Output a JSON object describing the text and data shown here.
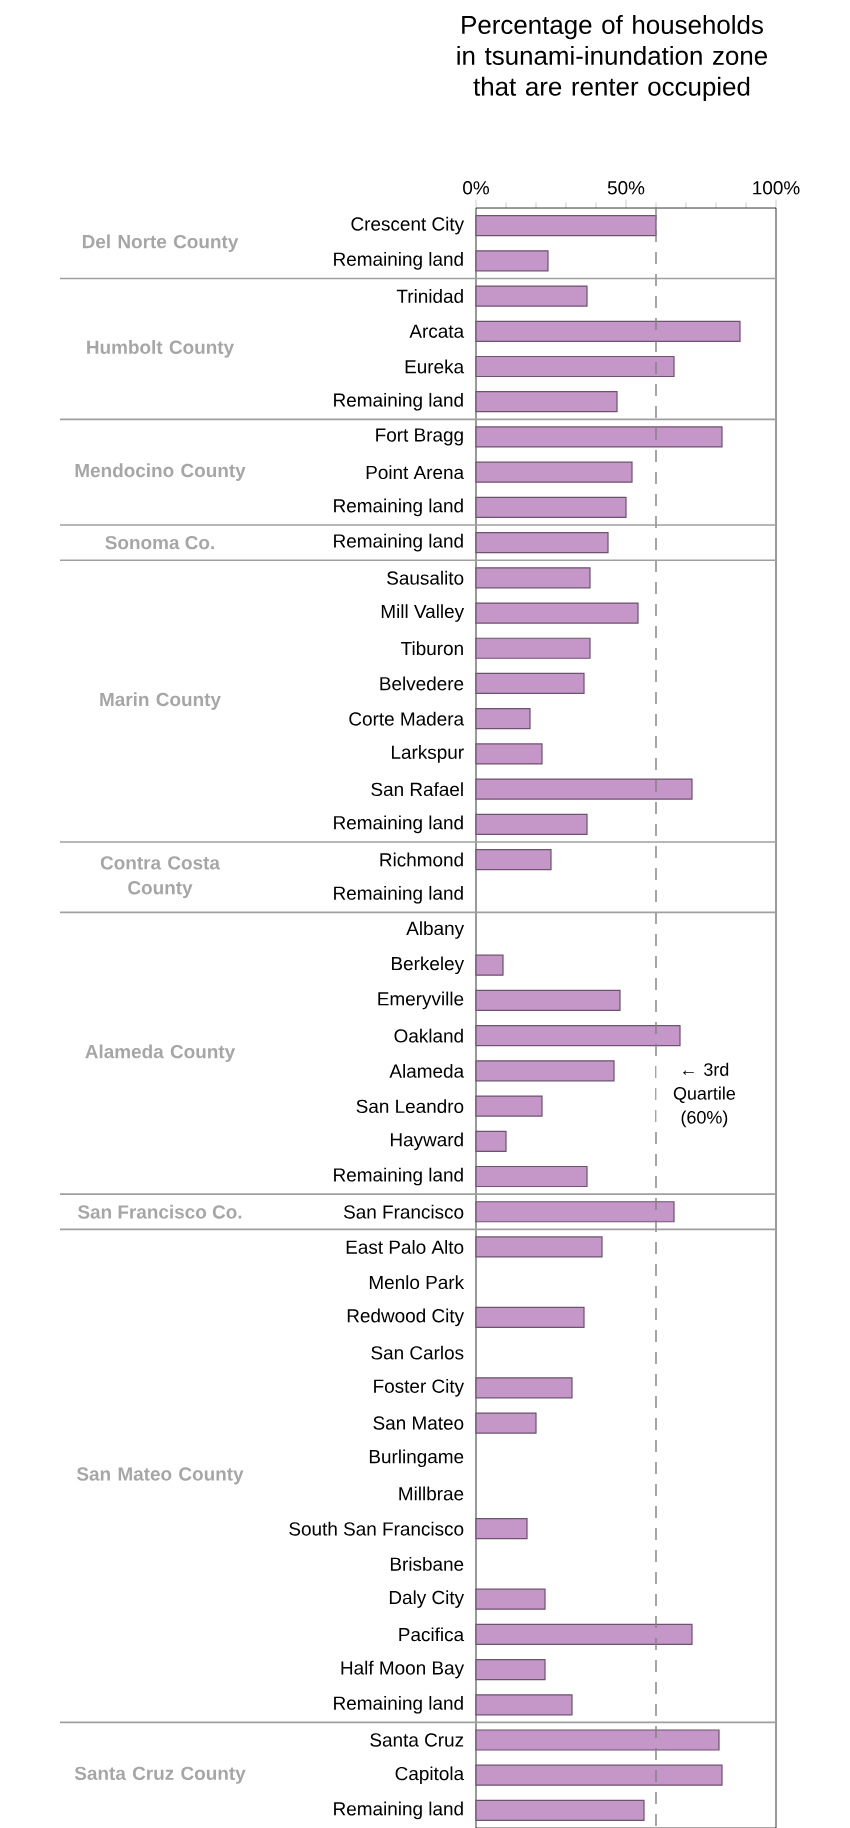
{
  "chart_data": {
    "type": "bar",
    "orientation": "horizontal",
    "title": "Percentage of households in tsunami-inundation zone that are renter occupied",
    "categories": [
      "Crescent City",
      "Remaining land",
      "Trinidad",
      "Arcata",
      "Eureka",
      "Remaining land",
      "Fort Bragg",
      "Point Arena",
      "Remaining land",
      "Remaining land",
      "Sausalito",
      "Mill Valley",
      "Tiburon",
      "Belvedere",
      "Corte Madera",
      "Larkspur",
      "San Rafael",
      "Remaining land",
      "Richmond",
      "Remaining land",
      "Albany",
      "Berkeley",
      "Emeryville",
      "Oakland",
      "Alameda",
      "San Leandro",
      "Hayward",
      "Remaining land",
      "San Francisco",
      "East Palo Alto",
      "Menlo Park",
      "Redwood City",
      "San Carlos",
      "Foster City",
      "San Mateo",
      "Burlingame",
      "Millbrae",
      "South San Francisco",
      "Brisbane",
      "Daly City",
      "Pacifica",
      "Half Moon Bay",
      "Remaining land",
      "Santa Cruz",
      "Capitola",
      "Remaining land"
    ],
    "values": [
      60,
      24,
      37,
      88,
      66,
      47,
      82,
      52,
      50,
      44,
      38,
      54,
      38,
      36,
      18,
      22,
      72,
      37,
      25,
      null,
      null,
      9,
      48,
      68,
      46,
      22,
      10,
      37,
      66,
      42,
      null,
      36,
      null,
      32,
      20,
      null,
      null,
      17,
      null,
      23,
      72,
      23,
      32,
      81,
      82,
      56
    ],
    "color": "#c497c8",
    "xlim": [
      0,
      100
    ],
    "xticks": [
      {
        "value": 0,
        "label": "0%"
      },
      {
        "value": 50,
        "label": "50%"
      },
      {
        "value": 100,
        "label": "100%"
      }
    ],
    "ref_lines": [
      {
        "axis": "x",
        "value": 60,
        "label": "← 3rd Quartile (60%)",
        "color": "#808080",
        "line_style": "dashed"
      }
    ],
    "annotations": [
      "Del Norte County",
      "Humbolt County",
      "Mendocino County",
      "Sonoma Co.",
      "Marin County",
      "Contra Costa County",
      "Alameda County",
      "San Francisco Co.",
      "San Mateo County",
      "Santa Cruz County"
    ],
    "grid": false
  }
}
